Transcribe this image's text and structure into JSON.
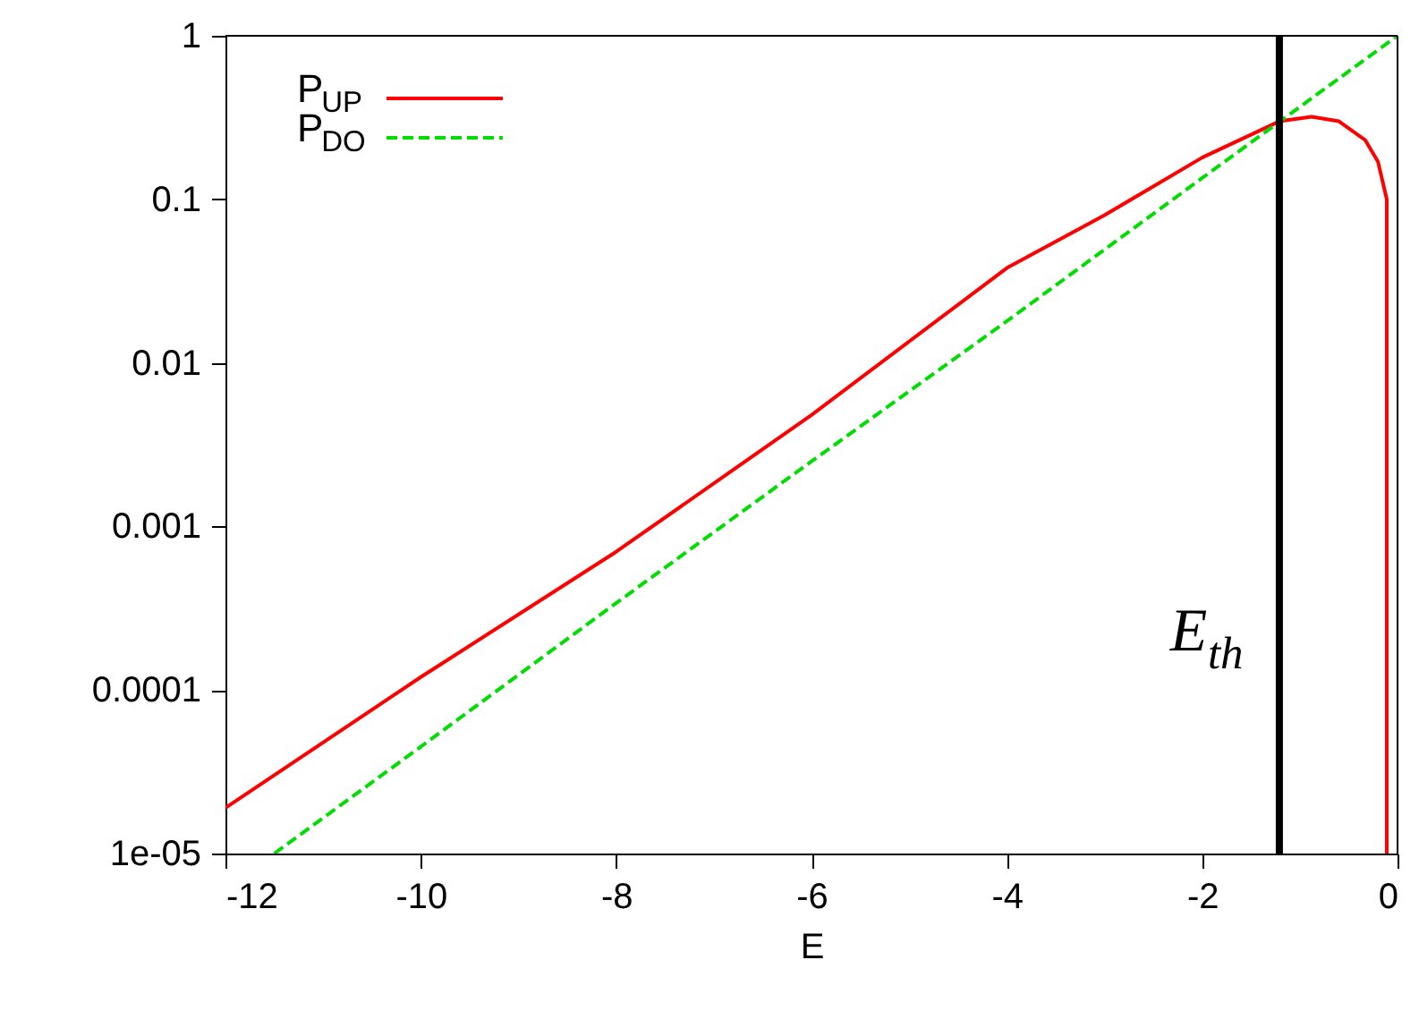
{
  "chart_data": {
    "type": "line",
    "xlabel": "E",
    "series": [
      {
        "name": "P$_{UP}$",
        "color": "#ff0000",
        "line_style": "solid",
        "x": [
          -12,
          -10,
          -8,
          -6,
          -4,
          -3,
          -2,
          -1.21,
          -0.88,
          -0.6,
          -0.33,
          -0.2,
          -0.11,
          -0.11
        ],
        "values": [
          1.9e-05,
          0.00012,
          0.0007,
          0.0048,
          0.038,
          0.08,
          0.18,
          0.3,
          0.32,
          0.3,
          0.23,
          0.17,
          0.1,
          1e-05
        ]
      },
      {
        "name": "P$_{DO}$",
        "color": "#00dd00",
        "line_style": "dashed",
        "x": [
          -11.5,
          -10,
          -8,
          -6,
          -4,
          -2,
          0
        ],
        "values": [
          1e-05,
          4.5e-05,
          0.00034,
          0.0025,
          0.018,
          0.135,
          1
        ]
      }
    ],
    "ref_lines": [
      {
        "axis": "x",
        "value": -1.21,
        "label": "E$_{th}$",
        "color": "#000000"
      }
    ],
    "xlim": [
      -12,
      0
    ],
    "xticks": [
      -12,
      -10,
      -8,
      -6,
      -4,
      -2,
      0
    ],
    "ylim": [
      1e-05,
      1
    ],
    "yticks": [
      {
        "value": 1e-05,
        "label": "1e-05"
      },
      0.0001,
      0.001,
      0.01,
      0.1,
      1
    ],
    "log": "y",
    "grid": false,
    "legend": "top left"
  }
}
